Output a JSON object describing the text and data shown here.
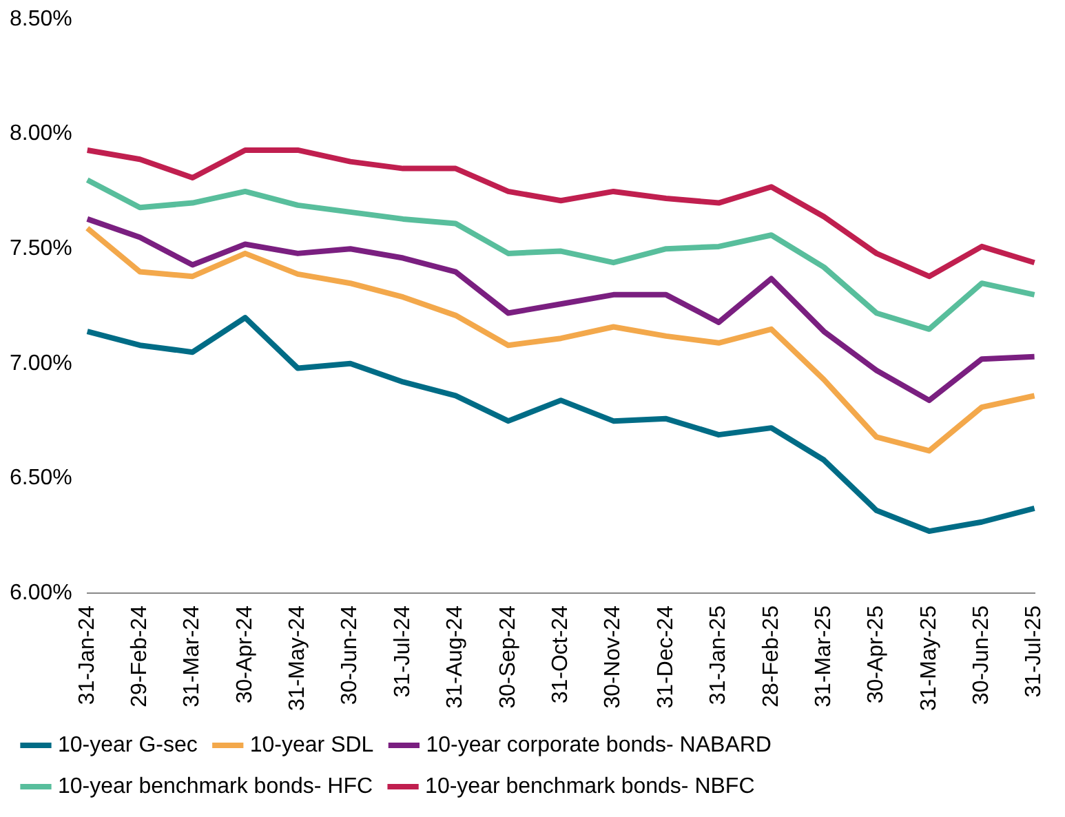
{
  "chart_data": {
    "type": "line",
    "categories": [
      "31-Jan-24",
      "29-Feb-24",
      "31-Mar-24",
      "30-Apr-24",
      "31-May-24",
      "30-Jun-24",
      "31-Jul-24",
      "31-Aug-24",
      "30-Sep-24",
      "31-Oct-24",
      "30-Nov-24",
      "31-Dec-24",
      "31-Jan-25",
      "28-Feb-25",
      "31-Mar-25",
      "30-Apr-25",
      "31-May-25",
      "30-Jun-25",
      "31-Jul-25"
    ],
    "series": [
      {
        "name": "10-year G-sec",
        "color": "#006c86",
        "values": [
          7.14,
          7.08,
          7.05,
          7.2,
          6.98,
          7.0,
          6.92,
          6.86,
          6.75,
          6.84,
          6.75,
          6.76,
          6.69,
          6.72,
          6.58,
          6.36,
          6.27,
          6.31,
          6.37
        ]
      },
      {
        "name": "10-year SDL",
        "color": "#f3a84b",
        "values": [
          7.59,
          7.4,
          7.38,
          7.48,
          7.39,
          7.35,
          7.29,
          7.21,
          7.08,
          7.11,
          7.16,
          7.12,
          7.09,
          7.15,
          6.93,
          6.68,
          6.62,
          6.81,
          6.86
        ]
      },
      {
        "name": "10-year corporate bonds- NABARD",
        "color": "#7a1f80",
        "values": [
          7.63,
          7.55,
          7.43,
          7.52,
          7.48,
          7.5,
          7.46,
          7.4,
          7.22,
          7.26,
          7.3,
          7.3,
          7.18,
          7.37,
          7.14,
          6.97,
          6.84,
          7.02,
          7.03
        ]
      },
      {
        "name": "10-year benchmark bonds- HFC",
        "color": "#58be9c",
        "values": [
          7.8,
          7.68,
          7.7,
          7.75,
          7.69,
          7.66,
          7.63,
          7.61,
          7.48,
          7.49,
          7.44,
          7.5,
          7.51,
          7.56,
          7.42,
          7.22,
          7.15,
          7.35,
          7.3
        ]
      },
      {
        "name": "10-year benchmark bonds- NBFC",
        "color": "#c01f4f",
        "values": [
          7.93,
          7.89,
          7.81,
          7.93,
          7.93,
          7.88,
          7.85,
          7.85,
          7.75,
          7.71,
          7.75,
          7.72,
          7.7,
          7.77,
          7.64,
          7.48,
          7.38,
          7.51,
          7.44
        ]
      }
    ],
    "ylim": [
      6,
      8.5
    ],
    "yticks": [
      {
        "value": 6,
        "label": "6.00%"
      },
      {
        "value": 6.5,
        "label": "6.50%"
      },
      {
        "value": 7,
        "label": "7.00%"
      },
      {
        "value": 7.5,
        "label": "7.50%"
      },
      {
        "value": 8,
        "label": "8.00%"
      },
      {
        "value": 8.5,
        "label": "8.50%"
      }
    ],
    "grid": false,
    "legend": "bottom",
    "marker": "none",
    "line_style": "solid"
  }
}
